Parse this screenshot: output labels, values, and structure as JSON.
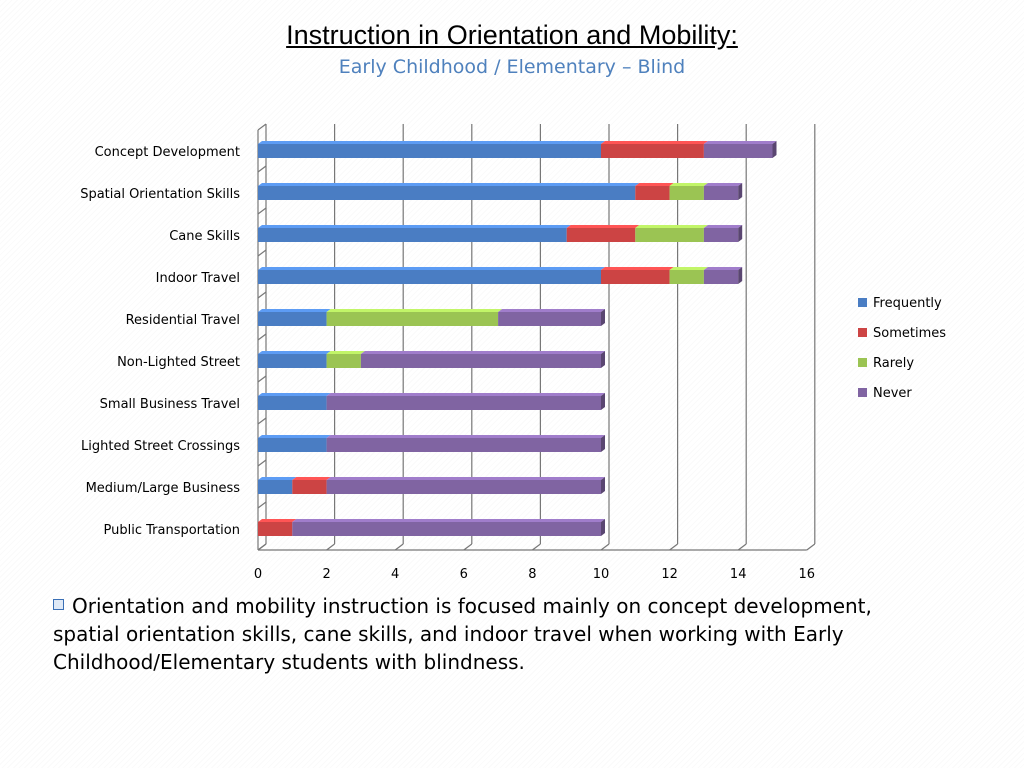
{
  "header": {
    "title": "Instruction in Orientation and Mobility:",
    "subtitle": "Early Childhood / Elementary – Blind"
  },
  "chart_data": {
    "type": "bar",
    "orientation": "horizontal",
    "stacked": true,
    "categories": [
      "Concept Development",
      "Spatial Orientation Skills",
      "Cane Skills",
      "Indoor Travel",
      "Residential Travel",
      "Non-Lighted Street",
      "Small Business Travel",
      "Lighted Street Crossings",
      "Medium/Large Business",
      "Public Transportation"
    ],
    "series": [
      {
        "name": "Frequently",
        "color": "#4a7dc3",
        "values": [
          10,
          11,
          9,
          10,
          2,
          2,
          2,
          2,
          1,
          0
        ]
      },
      {
        "name": "Sometimes",
        "color": "#cc4444",
        "values": [
          3,
          1,
          2,
          2,
          0,
          0,
          0,
          0,
          1,
          1
        ]
      },
      {
        "name": "Rarely",
        "color": "#9bc453",
        "values": [
          0,
          1,
          2,
          1,
          5,
          1,
          0,
          0,
          0,
          0
        ]
      },
      {
        "name": "Never",
        "color": "#8064a2",
        "values": [
          2,
          1,
          1,
          1,
          3,
          7,
          8,
          8,
          8,
          9
        ]
      }
    ],
    "xlim": [
      0,
      16
    ],
    "x_ticks": [
      "0",
      "2",
      "4",
      "6",
      "8",
      "10",
      "12",
      "14",
      "16"
    ],
    "grid": true,
    "legend_position": "right"
  },
  "footer": {
    "bullet_text": "Orientation and mobility instruction is focused mainly on concept development, spatial orientation skills, cane skills, and indoor travel when working with Early Childhood/Elementary students with blindness."
  }
}
